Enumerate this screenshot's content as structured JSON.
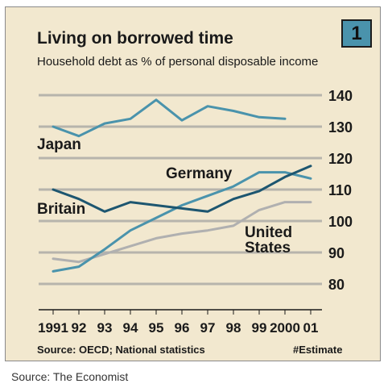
{
  "badge": "1",
  "footer": {
    "source_inner": "Source: OECD; National statistics",
    "estimate_note": "#Estimate",
    "source_outer": "Source: The Economist"
  },
  "chart_data": {
    "type": "line",
    "title": "Living on borrowed time",
    "subtitle": "Household debt as % of personal disposable income",
    "xlabel": "",
    "ylabel": "",
    "x": [
      1991,
      1992,
      1993,
      1994,
      1995,
      1996,
      1997,
      1998,
      1999,
      2000,
      2001
    ],
    "x_tick_labels": [
      "1991",
      "92",
      "93",
      "94",
      "95",
      "96",
      "97",
      "98",
      "99",
      "2000",
      "01"
    ],
    "y_ticks": [
      80,
      90,
      100,
      110,
      120,
      130,
      140
    ],
    "ylim": [
      76,
      142
    ],
    "grid": true,
    "y_axis_side": "right",
    "series": [
      {
        "name": "Japan",
        "label": "Japan",
        "color": "#4a93ac",
        "values": [
          130,
          127,
          131,
          132.5,
          138.5,
          132,
          136.5,
          135,
          133,
          132.5,
          null
        ]
      },
      {
        "name": "Germany",
        "label": "Germany",
        "color": "#4a93ac",
        "values": [
          84,
          85.5,
          91,
          97,
          101,
          105,
          108,
          111,
          115.5,
          115.5,
          113.5
        ]
      },
      {
        "name": "Britain",
        "label": "Britain",
        "color": "#1d5670",
        "values": [
          110,
          107,
          103,
          106,
          105,
          104,
          103,
          107,
          109.5,
          114,
          117.5
        ]
      },
      {
        "name": "United States",
        "label": "United States",
        "label_lines": [
          "United",
          "States"
        ],
        "color": "#b0b0b0",
        "values": [
          88,
          87,
          89.5,
          92,
          94.5,
          96,
          97,
          98.5,
          103.5,
          106,
          106
        ]
      }
    ]
  }
}
